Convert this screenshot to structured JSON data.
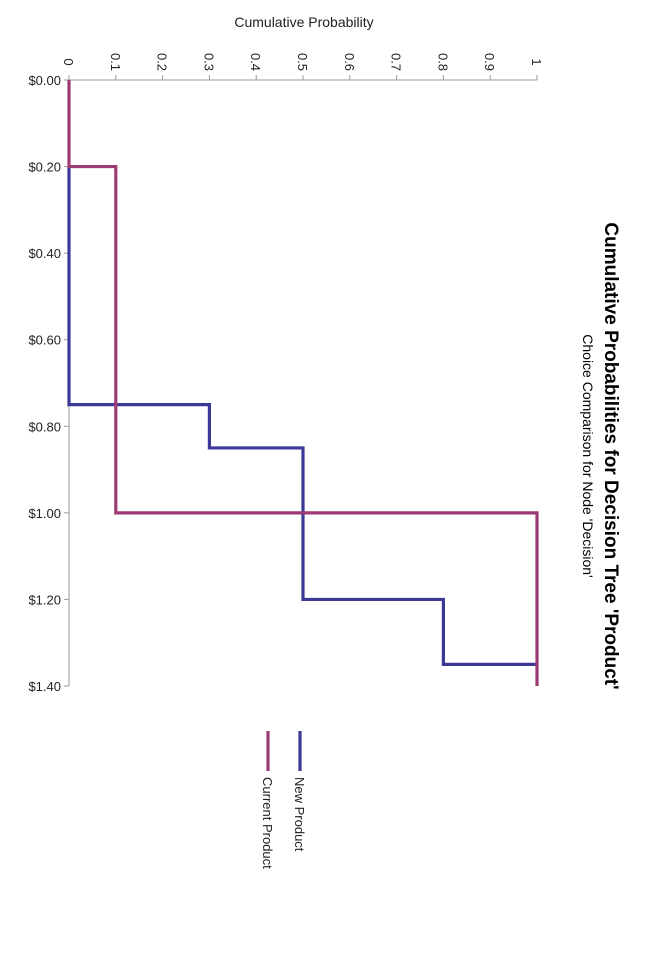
{
  "chart_data": {
    "type": "line",
    "orientation": "rotated 90 degrees clockwise",
    "title": "Cumulative Probabilities for Decision Tree 'Product'",
    "subtitle": "Choice Comparison for Node 'Decision'",
    "xlabel": "",
    "ylabel": "Cumulative Probability",
    "x_tick_labels": [
      "$0.00",
      "$0.20",
      "$0.40",
      "$0.60",
      "$0.80",
      "$1.00",
      "$1.20",
      "$1.40"
    ],
    "y_tick_labels": [
      "0",
      "0.1",
      "0.2",
      "0.3",
      "0.4",
      "0.5",
      "0.6",
      "0.7",
      "0.8",
      "0.9",
      "1"
    ],
    "xlim": [
      0,
      1.4
    ],
    "ylim": [
      0,
      1
    ],
    "grid": false,
    "legend_position": "bottom",
    "step": true,
    "series": [
      {
        "name": "New Product",
        "color": "#3b3896",
        "points": [
          [
            0.2,
            0
          ],
          [
            0.75,
            0
          ],
          [
            0.75,
            0.3
          ],
          [
            0.85,
            0.3
          ],
          [
            0.85,
            0.5
          ],
          [
            1.2,
            0.5
          ],
          [
            1.2,
            0.8
          ],
          [
            1.35,
            0.8
          ],
          [
            1.35,
            1
          ]
        ]
      },
      {
        "name": "Current Product",
        "color": "#9c3a74",
        "points": [
          [
            0,
            0
          ],
          [
            0.2,
            0
          ],
          [
            0.2,
            0.1
          ],
          [
            1.0,
            0.1
          ],
          [
            1.0,
            1
          ],
          [
            1.4,
            1
          ]
        ]
      }
    ]
  }
}
